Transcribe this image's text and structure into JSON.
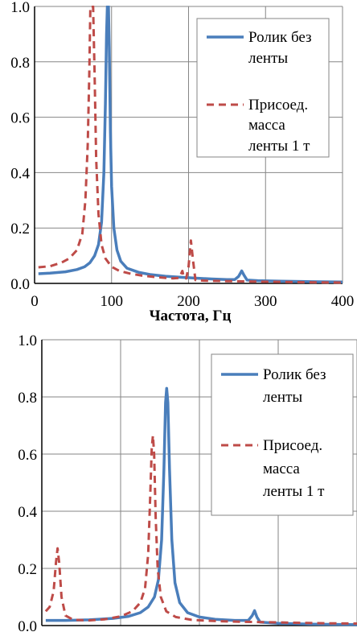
{
  "colors": {
    "series_solid": "#4a7ebb",
    "series_dashed": "#be4b48",
    "grid": "#868686",
    "axis": "#000000"
  },
  "chart_data": [
    {
      "type": "line",
      "title": "",
      "xlabel": "Частота, Гц",
      "ylabel": "",
      "xlim": [
        0,
        400
      ],
      "ylim": [
        0,
        1.0
      ],
      "x_ticks": [
        "0",
        "100",
        "200",
        "300",
        "400"
      ],
      "y_ticks": [
        "0.0",
        "0.2",
        "0.4",
        "0.6",
        "0.8",
        "1.0"
      ],
      "grid": true,
      "legend_position": "top-right",
      "series": [
        {
          "name": "Ролик без ленты",
          "name_lines": [
            "Ролик без",
            "ленты"
          ],
          "style": "solid",
          "points": [
            [
              5,
              0.035
            ],
            [
              20,
              0.037
            ],
            [
              40,
              0.042
            ],
            [
              55,
              0.05
            ],
            [
              65,
              0.06
            ],
            [
              72,
              0.075
            ],
            [
              78,
              0.1
            ],
            [
              83,
              0.14
            ],
            [
              87,
              0.22
            ],
            [
              90,
              0.4
            ],
            [
              92,
              0.65
            ],
            [
              93.5,
              0.9
            ],
            [
              94.5,
              1.0
            ],
            [
              96,
              1.0
            ],
            [
              97,
              0.85
            ],
            [
              98.5,
              0.55
            ],
            [
              100,
              0.35
            ],
            [
              103,
              0.2
            ],
            [
              107,
              0.12
            ],
            [
              112,
              0.08
            ],
            [
              120,
              0.055
            ],
            [
              135,
              0.04
            ],
            [
              150,
              0.032
            ],
            [
              170,
              0.026
            ],
            [
              190,
              0.022
            ],
            [
              210,
              0.019
            ],
            [
              230,
              0.016
            ],
            [
              250,
              0.014
            ],
            [
              260,
              0.014
            ],
            [
              265,
              0.025
            ],
            [
              269,
              0.045
            ],
            [
              272,
              0.03
            ],
            [
              276,
              0.012
            ],
            [
              290,
              0.01
            ],
            [
              320,
              0.008
            ],
            [
              360,
              0.006
            ],
            [
              400,
              0.005
            ]
          ]
        },
        {
          "name": "Присоед. масса ленты 1 т",
          "name_lines": [
            "Присоед.",
            "масса",
            "ленты 1 т"
          ],
          "style": "dashed",
          "points": [
            [
              5,
              0.058
            ],
            [
              20,
              0.062
            ],
            [
              35,
              0.075
            ],
            [
              45,
              0.09
            ],
            [
              55,
              0.12
            ],
            [
              62,
              0.18
            ],
            [
              66,
              0.3
            ],
            [
              69,
              0.5
            ],
            [
              71,
              0.75
            ],
            [
              72.5,
              1.0
            ],
            [
              76,
              1.0
            ],
            [
              78,
              0.75
            ],
            [
              80,
              0.45
            ],
            [
              83,
              0.25
            ],
            [
              87,
              0.14
            ],
            [
              92,
              0.09
            ],
            [
              100,
              0.06
            ],
            [
              110,
              0.045
            ],
            [
              125,
              0.035
            ],
            [
              140,
              0.028
            ],
            [
              160,
              0.022
            ],
            [
              180,
              0.018
            ],
            [
              188,
              0.02
            ],
            [
              192,
              0.045
            ],
            [
              194,
              0.02
            ],
            [
              197,
              0.018
            ],
            [
              200,
              0.06
            ],
            [
              203,
              0.155
            ],
            [
              206,
              0.08
            ],
            [
              209,
              0.012
            ],
            [
              220,
              0.01
            ],
            [
              250,
              0.008
            ],
            [
              300,
              0.006
            ],
            [
              350,
              0.004
            ],
            [
              400,
              0.003
            ]
          ]
        }
      ]
    },
    {
      "type": "line",
      "title": "",
      "xlabel": "",
      "ylabel": "",
      "xlim": [
        0,
        400
      ],
      "ylim": [
        0,
        1.0
      ],
      "x_ticks": [],
      "y_ticks": [
        "0.0",
        "0.2",
        "0.4",
        "0.6",
        "0.8",
        "1.0"
      ],
      "grid": true,
      "legend_position": "top-right",
      "series": [
        {
          "name": "Ролик без ленты",
          "name_lines": [
            "Ролик без",
            "ленты"
          ],
          "style": "solid",
          "points": [
            [
              5,
              0.018
            ],
            [
              30,
              0.018
            ],
            [
              60,
              0.02
            ],
            [
              90,
              0.025
            ],
            [
              110,
              0.032
            ],
            [
              125,
              0.045
            ],
            [
              135,
              0.065
            ],
            [
              143,
              0.1
            ],
            [
              148,
              0.16
            ],
            [
              152,
              0.3
            ],
            [
              155,
              0.55
            ],
            [
              157,
              0.78
            ],
            [
              158.5,
              0.83
            ],
            [
              160,
              0.78
            ],
            [
              162,
              0.55
            ],
            [
              165,
              0.3
            ],
            [
              169,
              0.15
            ],
            [
              175,
              0.08
            ],
            [
              185,
              0.045
            ],
            [
              200,
              0.03
            ],
            [
              220,
              0.022
            ],
            [
              245,
              0.018
            ],
            [
              262,
              0.018
            ],
            [
              267,
              0.035
            ],
            [
              270,
              0.052
            ],
            [
              273,
              0.03
            ],
            [
              277,
              0.012
            ],
            [
              300,
              0.008
            ],
            [
              340,
              0.005
            ],
            [
              400,
              0.003
            ]
          ]
        },
        {
          "name": "Присоед. масса ленты 1 т",
          "name_lines": [
            "Присоед.",
            "масса",
            "ленты 1 т"
          ],
          "style": "dashed",
          "points": [
            [
              5,
              0.05
            ],
            [
              10,
              0.065
            ],
            [
              15,
              0.12
            ],
            [
              18,
              0.22
            ],
            [
              20,
              0.27
            ],
            [
              22,
              0.22
            ],
            [
              25,
              0.1
            ],
            [
              30,
              0.035
            ],
            [
              40,
              0.02
            ],
            [
              60,
              0.018
            ],
            [
              80,
              0.022
            ],
            [
              100,
              0.032
            ],
            [
              115,
              0.05
            ],
            [
              125,
              0.08
            ],
            [
              131,
              0.13
            ],
            [
              135,
              0.25
            ],
            [
              137.5,
              0.45
            ],
            [
              139.5,
              0.62
            ],
            [
              141,
              0.665
            ],
            [
              142.5,
              0.6
            ],
            [
              144.5,
              0.38
            ],
            [
              147,
              0.2
            ],
            [
              151,
              0.1
            ],
            [
              158,
              0.05
            ],
            [
              170,
              0.03
            ],
            [
              190,
              0.02
            ],
            [
              210,
              0.017
            ],
            [
              240,
              0.014
            ],
            [
              260,
              0.013
            ],
            [
              280,
              0.012
            ],
            [
              320,
              0.01
            ],
            [
              360,
              0.008
            ],
            [
              400,
              0.007
            ]
          ]
        }
      ]
    }
  ]
}
